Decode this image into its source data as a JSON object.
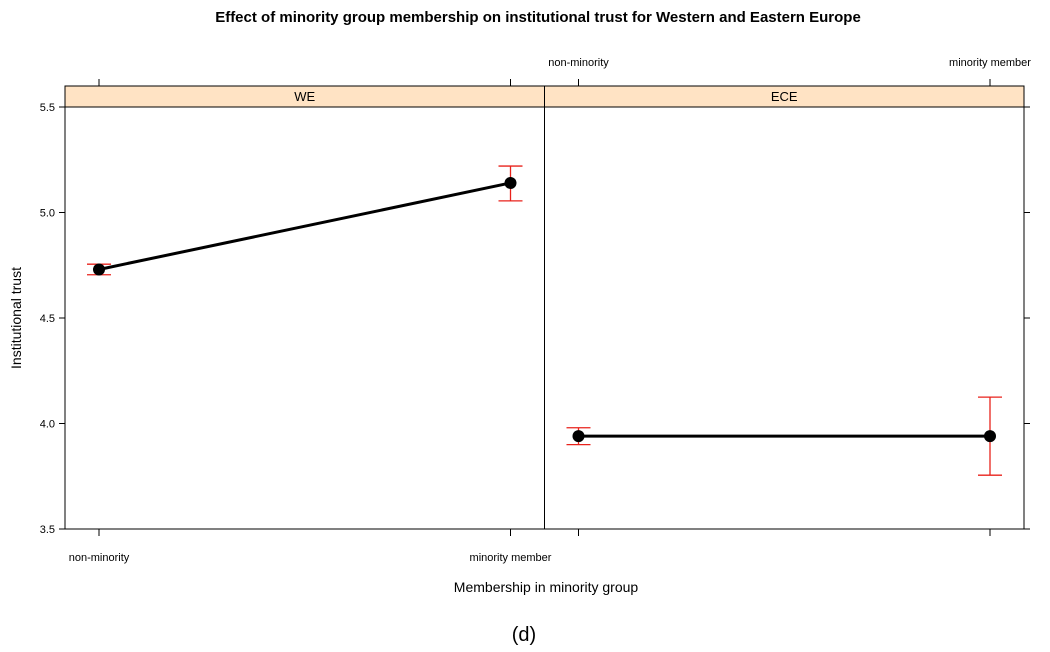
{
  "chart_data": {
    "type": "line",
    "title": "Effect of minority group membership on institutional trust for Western and Eastern Europe",
    "xlabel": "Membership in minority group",
    "ylabel": "Institutional trust",
    "categories": [
      "non-minority",
      "minority member"
    ],
    "ylim": [
      3.5,
      5.5
    ],
    "yticks": [
      "3.5",
      "4.0",
      "4.5",
      "5.0",
      "5.5"
    ],
    "grid": false,
    "colors": {
      "line": "#000000",
      "errorbar": "#e8221b",
      "strip": "#ffe3c4"
    },
    "panels": [
      {
        "strip": "WE",
        "values": [
          4.73,
          5.14
        ],
        "lower": [
          4.705,
          5.055
        ],
        "upper": [
          4.755,
          5.22
        ]
      },
      {
        "strip": "ECE",
        "values": [
          3.94,
          3.94
        ],
        "lower": [
          3.9,
          3.755
        ],
        "upper": [
          3.98,
          4.125
        ]
      }
    ]
  },
  "caption": "(d)"
}
